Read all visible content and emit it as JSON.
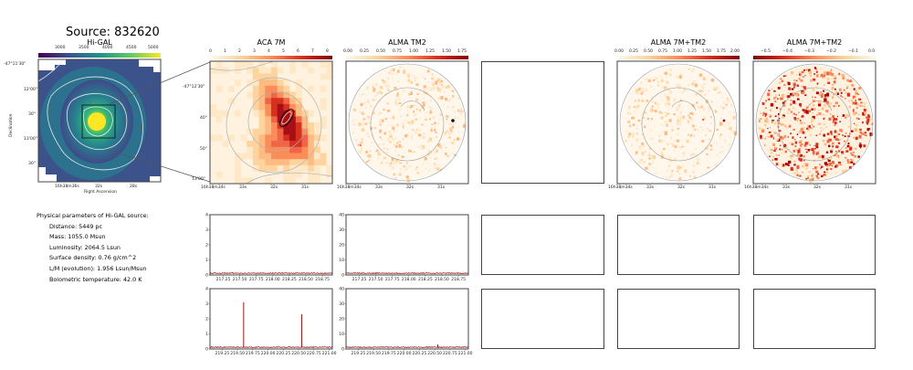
{
  "figure": {
    "title": "Source: 832620"
  },
  "panels": {
    "higal": {
      "title": "Hi-GAL",
      "colorbar_ticks": [
        "3000",
        "3500",
        "4000",
        "4500",
        "5000"
      ],
      "xlabel": "Right Ascension",
      "ylabel": "Declination",
      "xticks": [
        "16h38m36s",
        "32s",
        "28s"
      ],
      "yticks": [
        "-47°11'30\"",
        "12'00\"",
        "30\"",
        "13'00\"",
        "30\""
      ],
      "marker": "S"
    },
    "aca": {
      "title": "ACA 7M",
      "colorbar_ticks": [
        "0",
        "1",
        "2",
        "3",
        "4",
        "5",
        "6",
        "7",
        "8"
      ],
      "xticks": [
        "16h38m34s",
        "33s",
        "32s",
        "31s"
      ],
      "yticks": [
        "-47°12'30\"",
        "40\"",
        "50\"",
        "13'00\""
      ]
    },
    "tm2": {
      "title": "ALMA TM2",
      "colorbar_ticks": [
        "0.00",
        "0.25",
        "0.50",
        "0.75",
        "1.00",
        "1.25",
        "1.50",
        "1.75"
      ],
      "xticks": [
        "16h38m34s",
        "33s",
        "32s",
        "31s"
      ]
    },
    "combo": {
      "title": "ALMA 7M+TM2",
      "colorbar_ticks": [
        "0.00",
        "0.25",
        "0.50",
        "0.75",
        "1.00",
        "1.25",
        "1.50",
        "1.75",
        "2.00"
      ],
      "xticks": [
        "16h38m34s",
        "33s",
        "32s",
        "31s"
      ]
    },
    "residual": {
      "title": "ALMA 7M+TM2",
      "colorbar_ticks": [
        "−0.5",
        "−0.4",
        "−0.3",
        "−0.2",
        "−0.1",
        "0.0"
      ],
      "xticks": [
        "16h38m34s",
        "33s",
        "32s",
        "31s"
      ]
    }
  },
  "parameters": {
    "heading": "Physical parameters of Hi-GAL source:",
    "distance": "Distance: 5449 pc",
    "mass": "Mass: 1055.0 Msun",
    "luminosity": "Luminosity: 2064.5 Lsun",
    "surface_density": "Surface density: 0.76 g/cm^2",
    "lm": "L/M (evolution): 1.956 Lsun/Msun",
    "temperature": "Bolometric temperature: 42.0 K"
  },
  "spectra": {
    "row1": {
      "aca": {
        "yticks": [
          "4",
          "3",
          "2",
          "1",
          "0"
        ],
        "xticks": [
          "217.25",
          "217.50",
          "217.75",
          "218.00",
          "218.25",
          "218.50",
          "218.75"
        ],
        "x": [
          217.05,
          218.9
        ],
        "ylim": [
          0,
          4
        ]
      },
      "tm2": {
        "yticks": [
          "40",
          "30",
          "20",
          "10",
          "0"
        ],
        "xticks": [
          "217.25",
          "217.50",
          "217.75",
          "218.00",
          "218.25",
          "218.50",
          "218.75"
        ],
        "x": [
          217.05,
          218.9
        ],
        "ylim": [
          0,
          40
        ]
      }
    },
    "row2": {
      "aca": {
        "yticks": [
          "4",
          "3",
          "2",
          "1",
          "0"
        ],
        "xticks": [
          "219.25",
          "219.50",
          "219.75",
          "220.00",
          "220.25",
          "220.50",
          "220.75",
          "221.00"
        ],
        "x": [
          219.05,
          221.05
        ],
        "ylim": [
          0,
          4
        ],
        "lines": [
          {
            "x": 219.6,
            "y": 3.1
          },
          {
            "x": 220.55,
            "y": 2.3
          }
        ]
      },
      "tm2": {
        "yticks": [
          "40",
          "30",
          "20",
          "10",
          "0"
        ],
        "xticks": [
          "219.25",
          "219.50",
          "219.75",
          "220.00",
          "220.25",
          "220.50",
          "220.75",
          "221.00"
        ],
        "x": [
          219.05,
          221.05
        ],
        "ylim": [
          0,
          40
        ],
        "lines": [
          {
            "x": 220.55,
            "y": 3.0
          }
        ]
      }
    }
  },
  "colors": {
    "spectrum": "#8b0000",
    "frame": "#444444"
  }
}
